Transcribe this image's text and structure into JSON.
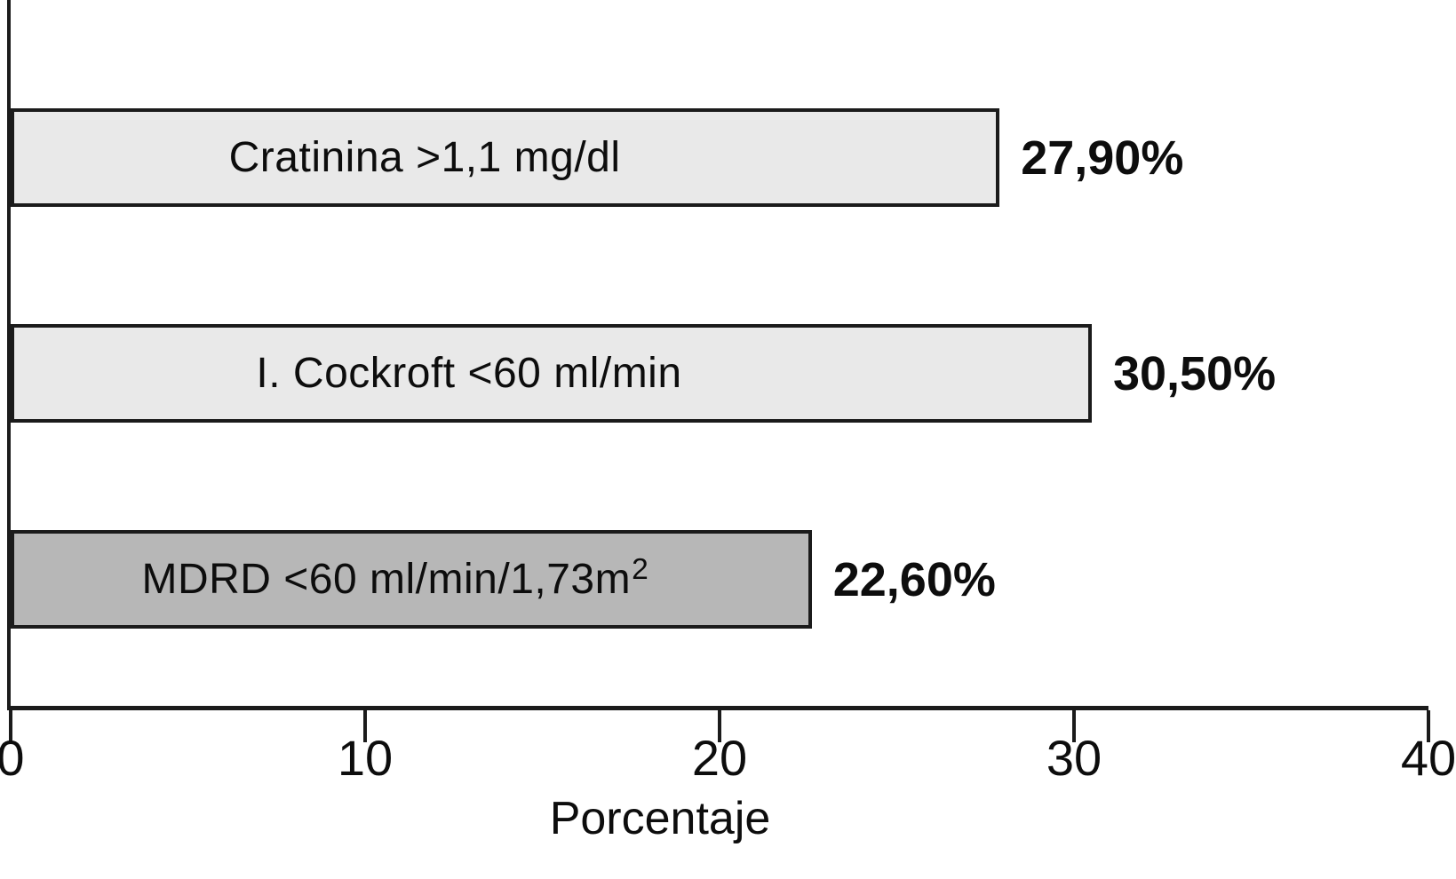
{
  "chart_data": {
    "type": "bar",
    "orientation": "horizontal",
    "title": "",
    "xlabel": "Porcentaje",
    "ylabel": "",
    "xlim": [
      0,
      40
    ],
    "xticks": [
      0,
      10,
      20,
      30,
      40
    ],
    "grid": false,
    "legend": false,
    "categories": [
      "Cratinina >1,1 mg/dl",
      "I. Cockroft <60 ml/min",
      "MDRD <60 ml/min/1,73m2"
    ],
    "values": [
      27.9,
      30.5,
      22.6
    ],
    "value_labels": [
      "27,90%",
      "30,50%",
      "22,60%"
    ]
  },
  "bars": [
    {
      "label_main": "Cratinina >1,1 mg/dl",
      "label_sup": "",
      "value": 27.9,
      "value_label": "27,90%",
      "fill": "#e9e9e9"
    },
    {
      "label_main": "I. Cockroft <60 ml/min",
      "label_sup": "",
      "value": 30.5,
      "value_label": "30,50%",
      "fill": "#e9e9e9"
    },
    {
      "label_main": "MDRD <60 ml/min/1,73m",
      "label_sup": "2",
      "value": 22.6,
      "value_label": "22,60%",
      "fill": "#b7b7b7"
    }
  ],
  "x_axis": {
    "title": "Porcentaje",
    "tick_labels": [
      "0",
      "10",
      "20",
      "30",
      "40"
    ],
    "max": 40
  },
  "colors": {
    "bar_light": "#e9e9e9",
    "bar_dark": "#b7b7b7",
    "ink": "#1b1b1b",
    "background": "#ffffff"
  }
}
